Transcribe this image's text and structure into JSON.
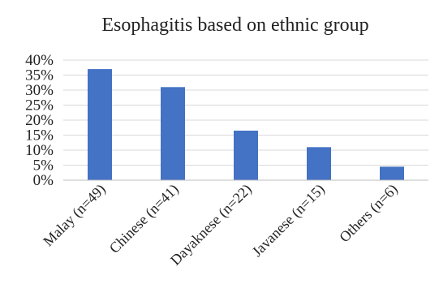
{
  "chart_data": {
    "type": "bar",
    "title": "Esophagitis based on ethnic group",
    "xlabel": "",
    "ylabel": "",
    "categories": [
      "Malay (n=49)",
      "Chinese (n=41)",
      "Dayaknese (n=22)",
      "Javanese (n=15)",
      "Others (n=6)"
    ],
    "values": [
      37,
      31,
      16.5,
      11,
      4.5
    ],
    "ylim": [
      0,
      40
    ],
    "yticks": [
      0,
      5,
      10,
      15,
      20,
      25,
      30,
      35,
      40
    ],
    "ytick_labels": [
      "0%",
      "5%",
      "10%",
      "15%",
      "20%",
      "25%",
      "30%",
      "35%",
      "40%"
    ],
    "grid": true,
    "legend": "none",
    "bar_color": "#4472c4"
  }
}
